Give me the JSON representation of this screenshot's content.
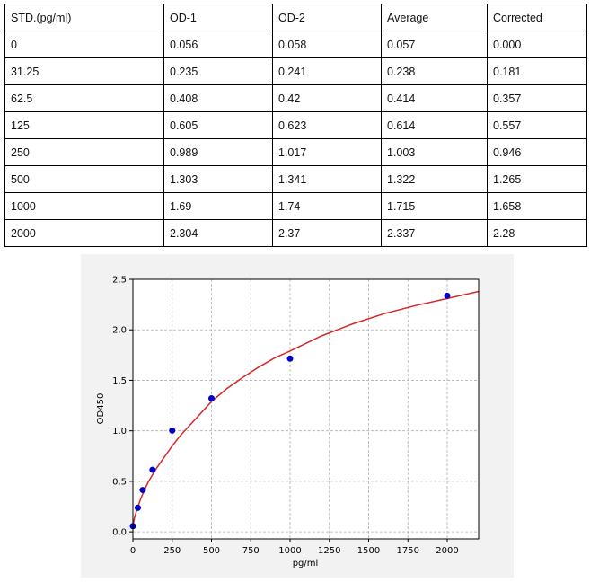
{
  "table": {
    "headers": [
      "STD.(pg/ml)",
      "OD-1",
      "OD-2",
      "Average",
      "Corrected"
    ],
    "rows": [
      [
        "0",
        "0.056",
        "0.058",
        "0.057",
        "0.000"
      ],
      [
        "31.25",
        "0.235",
        "0.241",
        "0.238",
        "0.181"
      ],
      [
        "62.5",
        "0.408",
        "0.42",
        "0.414",
        "0.357"
      ],
      [
        "125",
        "0.605",
        "0.623",
        "0.614",
        "0.557"
      ],
      [
        "250",
        "0.989",
        "1.017",
        "1.003",
        "0.946"
      ],
      [
        "500",
        "1.303",
        "1.341",
        "1.322",
        "1.265"
      ],
      [
        "1000",
        "1.69",
        "1.74",
        "1.715",
        "1.658"
      ],
      [
        "2000",
        "2.304",
        "2.37",
        "2.337",
        "2.28"
      ]
    ]
  },
  "chart_data": {
    "type": "scatter",
    "title": "",
    "xlabel": "pg/ml",
    "ylabel": "OD450",
    "xlim": [
      0,
      2200
    ],
    "ylim": [
      -0.07,
      2.5
    ],
    "xticks": [
      0,
      250,
      500,
      750,
      1000,
      1250,
      1500,
      1750,
      2000
    ],
    "xtick_labels": [
      "0",
      "250",
      "500",
      "750",
      "1000",
      "1250",
      "1500",
      "1750",
      "2000"
    ],
    "yticks": [
      0.0,
      0.5,
      1.0,
      1.5,
      2.0,
      2.5
    ],
    "ytick_labels": [
      "0.0",
      "0.5",
      "1.0",
      "1.5",
      "2.0",
      "2.5"
    ],
    "grid": true,
    "series": [
      {
        "kind": "points",
        "x": [
          0,
          31.25,
          62.5,
          125,
          250,
          500,
          1000,
          2000
        ],
        "y": [
          0.057,
          0.238,
          0.414,
          0.614,
          1.003,
          1.322,
          1.715,
          2.337
        ],
        "color": "#0000cc"
      },
      {
        "kind": "fitted-curve",
        "x": [
          0,
          10,
          25,
          50,
          75,
          100,
          150,
          200,
          250,
          300,
          400,
          500,
          600,
          700,
          800,
          900,
          1000,
          1200,
          1400,
          1600,
          1800,
          2000,
          2200
        ],
        "y": [
          0.06,
          0.14,
          0.22,
          0.33,
          0.42,
          0.5,
          0.63,
          0.74,
          0.85,
          0.95,
          1.12,
          1.29,
          1.42,
          1.53,
          1.63,
          1.72,
          1.79,
          1.94,
          2.06,
          2.16,
          2.24,
          2.31,
          2.38
        ],
        "color": "#d62728"
      }
    ]
  }
}
